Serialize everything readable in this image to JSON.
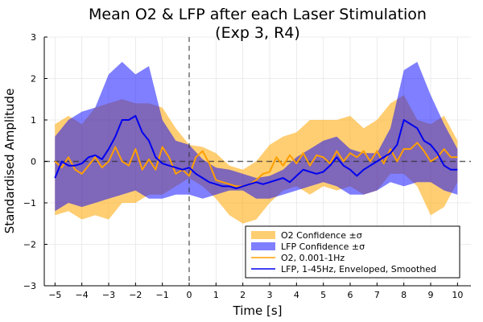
{
  "chart_data": {
    "type": "line",
    "title": [
      "Mean O2 & LFP after each Laser Stimulation",
      "(Exp 3, R4)"
    ],
    "xlabel": "Time [s]",
    "ylabel": "Standardised Amplitude",
    "xlim": [
      -5.4,
      10.5
    ],
    "ylim": [
      -3,
      3
    ],
    "xticks": [
      -5,
      -4,
      -3,
      -2,
      -1,
      0,
      1,
      2,
      3,
      4,
      5,
      6,
      7,
      8,
      9,
      10
    ],
    "xtick_labels": [
      "−5",
      "−4",
      "−3",
      "−2",
      "−1",
      "0",
      "1",
      "2",
      "3",
      "4",
      "5",
      "6",
      "7",
      "8",
      "9",
      "10"
    ],
    "yticks": [
      -3,
      -2,
      -1,
      0,
      1,
      2,
      3
    ],
    "ytick_labels": [
      "−3",
      "−2",
      "−1",
      "0",
      "1",
      "2",
      "3"
    ],
    "grid": true,
    "legend_position": "bottom-right",
    "reference_lines": [
      {
        "orientation": "horizontal",
        "value": 0,
        "style": "dashed"
      },
      {
        "orientation": "vertical",
        "value": 0,
        "style": "dashed"
      }
    ],
    "colors": {
      "o2_band": "#FFA500",
      "lfp_band": "#0000FF",
      "o2_line": "#FF9F00",
      "lfp_line": "#0000F0"
    },
    "legend": [
      {
        "label": "O2 Confidence ±σ",
        "kind": "band",
        "color_key": "o2_band"
      },
      {
        "label": "LFP Confidence ±σ",
        "kind": "band",
        "color_key": "lfp_band"
      },
      {
        "label": "O2, 0.001-1Hz",
        "kind": "line",
        "color_key": "o2_line"
      },
      {
        "label": "LFP, 1-45Hz, Enveloped, Smoothed",
        "kind": "line",
        "color_key": "lfp_line"
      }
    ],
    "series": [
      {
        "name": "O2 Confidence ±σ",
        "kind": "band",
        "x": [
          -5,
          -4.5,
          -4,
          -3.5,
          -3,
          -2.5,
          -2,
          -1.5,
          -1,
          -0.5,
          0,
          0.5,
          1,
          1.5,
          2,
          2.5,
          3,
          3.5,
          4,
          4.5,
          5,
          5.5,
          6,
          6.5,
          7,
          7.5,
          8,
          8.5,
          9,
          9.5,
          10
        ],
        "upper": [
          0.9,
          1.1,
          0.9,
          1.3,
          1.4,
          1.5,
          1.4,
          1.4,
          1.3,
          0.8,
          0.4,
          0.35,
          0.2,
          -0.1,
          -0.2,
          0.0,
          0.4,
          0.6,
          0.7,
          1.0,
          1.0,
          1.0,
          1.1,
          0.8,
          1.0,
          1.4,
          1.6,
          1.0,
          0.9,
          1.1,
          0.5
        ],
        "lower": [
          -1.3,
          -1.2,
          -1.4,
          -1.3,
          -1.4,
          -1.0,
          -1.0,
          -0.8,
          -0.8,
          -0.6,
          -0.4,
          -0.6,
          -0.9,
          -1.3,
          -1.5,
          -1.4,
          -1.0,
          -0.7,
          -0.6,
          -0.8,
          -0.6,
          -0.7,
          -0.6,
          -0.8,
          -0.7,
          -0.3,
          -0.3,
          -0.6,
          -1.3,
          -1.1,
          -0.5
        ]
      },
      {
        "name": "LFP Confidence ±σ",
        "kind": "band",
        "x": [
          -5,
          -4.5,
          -4,
          -3.5,
          -3,
          -2.5,
          -2,
          -1.5,
          -1,
          -0.5,
          0,
          0.5,
          1,
          1.5,
          2,
          2.5,
          3,
          3.5,
          4,
          4.5,
          5,
          5.5,
          6,
          6.5,
          7,
          7.5,
          8,
          8.5,
          9,
          9.5,
          10
        ],
        "upper": [
          0.6,
          1.0,
          1.2,
          1.3,
          2.1,
          2.4,
          2.1,
          2.3,
          1.0,
          0.5,
          0.4,
          0.05,
          -0.15,
          -0.2,
          -0.3,
          -0.4,
          -0.35,
          -0.2,
          0.1,
          0.3,
          0.5,
          0.6,
          0.3,
          0.2,
          0.2,
          0.8,
          2.2,
          2.4,
          1.6,
          0.9,
          0.3
        ],
        "lower": [
          -1.2,
          -1.0,
          -1.1,
          -1.0,
          -0.9,
          -0.8,
          -0.7,
          -0.9,
          -0.9,
          -0.8,
          -0.8,
          -0.9,
          -0.8,
          -0.7,
          -0.7,
          -0.9,
          -0.9,
          -0.8,
          -0.7,
          -0.6,
          -0.5,
          -0.6,
          -0.8,
          -0.8,
          -0.7,
          -0.5,
          -0.6,
          -0.5,
          -0.5,
          -0.7,
          -0.8
        ]
      },
      {
        "name": "O2, 0.001-1Hz",
        "kind": "line",
        "x": [
          -5,
          -4.75,
          -4.5,
          -4.25,
          -4,
          -3.75,
          -3.5,
          -3.25,
          -3,
          -2.75,
          -2.5,
          -2.25,
          -2,
          -1.75,
          -1.5,
          -1.25,
          -1,
          -0.75,
          -0.5,
          -0.25,
          0,
          0.25,
          0.5,
          0.75,
          1,
          1.25,
          1.5,
          1.75,
          2,
          2.25,
          2.5,
          2.75,
          3,
          3.25,
          3.5,
          3.75,
          4,
          4.25,
          4.5,
          4.75,
          5,
          5.25,
          5.5,
          5.75,
          6,
          6.25,
          6.5,
          6.75,
          7,
          7.25,
          7.5,
          7.75,
          8,
          8.25,
          8.5,
          8.75,
          9,
          9.25,
          9.5,
          9.75,
          10
        ],
        "y": [
          0.0,
          -0.15,
          0.1,
          -0.2,
          -0.3,
          -0.1,
          0.1,
          -0.15,
          0.0,
          0.35,
          0.0,
          -0.1,
          0.3,
          -0.2,
          0.05,
          -0.2,
          0.35,
          0.1,
          -0.3,
          -0.2,
          -0.35,
          0.1,
          0.25,
          -0.05,
          -0.45,
          -0.5,
          -0.55,
          -0.6,
          -0.6,
          -0.55,
          -0.45,
          -0.3,
          -0.25,
          0.1,
          -0.1,
          0.15,
          -0.05,
          0.2,
          -0.1,
          0.15,
          0.1,
          -0.05,
          0.25,
          0.0,
          0.2,
          0.1,
          0.25,
          0.0,
          0.25,
          -0.05,
          0.3,
          0.0,
          0.3,
          0.3,
          0.45,
          0.25,
          0.0,
          0.1,
          0.3,
          0.1,
          0.1
        ]
      },
      {
        "name": "LFP, 1-45Hz, Enveloped, Smoothed",
        "kind": "line",
        "x": [
          -5,
          -4.75,
          -4.5,
          -4.25,
          -4,
          -3.75,
          -3.5,
          -3.25,
          -3,
          -2.75,
          -2.5,
          -2.25,
          -2,
          -1.75,
          -1.5,
          -1.25,
          -1,
          -0.75,
          -0.5,
          -0.25,
          0,
          0.25,
          0.5,
          0.75,
          1,
          1.25,
          1.5,
          1.75,
          2,
          2.25,
          2.5,
          2.75,
          3,
          3.25,
          3.5,
          3.75,
          4,
          4.25,
          4.5,
          4.75,
          5,
          5.25,
          5.5,
          5.75,
          6,
          6.25,
          6.5,
          6.75,
          7,
          7.25,
          7.5,
          7.75,
          8,
          8.25,
          8.5,
          8.75,
          9,
          9.25,
          9.5,
          9.75,
          10
        ],
        "y": [
          -0.4,
          0.0,
          -0.1,
          -0.1,
          -0.05,
          0.1,
          0.15,
          0.05,
          0.3,
          0.6,
          1.0,
          1.0,
          1.1,
          0.7,
          0.5,
          0.1,
          -0.05,
          -0.1,
          -0.15,
          -0.2,
          -0.15,
          -0.3,
          -0.4,
          -0.5,
          -0.55,
          -0.6,
          -0.6,
          -0.65,
          -0.6,
          -0.55,
          -0.5,
          -0.55,
          -0.5,
          -0.45,
          -0.4,
          -0.5,
          -0.35,
          -0.2,
          -0.25,
          -0.3,
          -0.25,
          -0.1,
          0.1,
          -0.1,
          -0.2,
          -0.35,
          -0.2,
          -0.1,
          0.0,
          0.1,
          0.2,
          0.4,
          1.0,
          0.9,
          0.8,
          0.5,
          0.4,
          0.2,
          -0.1,
          -0.2,
          -0.2
        ]
      }
    ]
  }
}
